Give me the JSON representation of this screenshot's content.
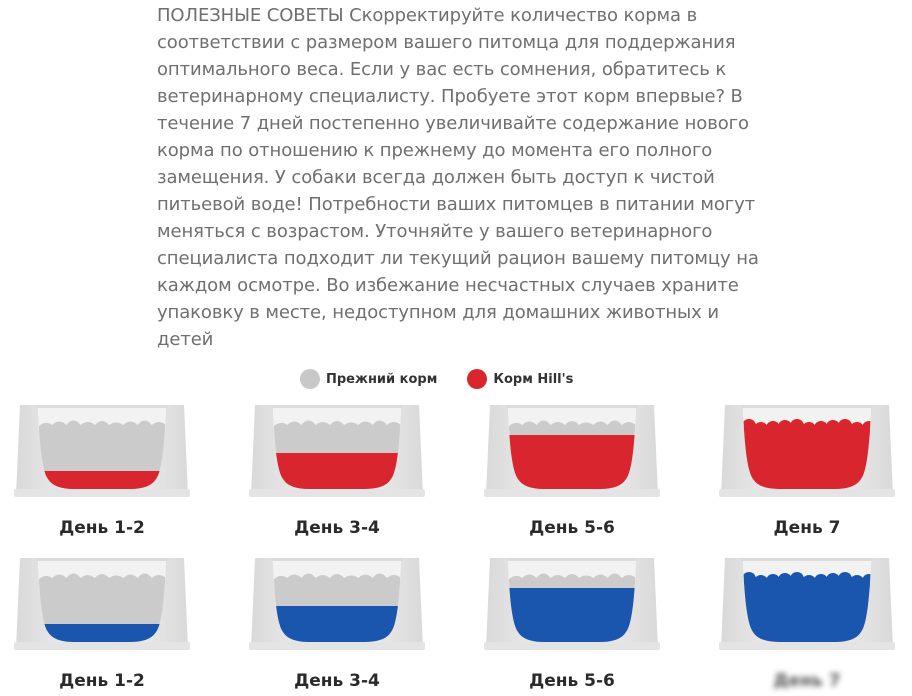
{
  "advice_text": "ПОЛЕЗНЫЕ СОВЕТЫ Скорректируйте количество корма в соответствии с размером вашего питомца для поддержания оптимального веса. Если у вас есть сомнения, обратитесь к ветеринарному специалисту. Пробуете этот корм впервые? В течение 7 дней постепенно увеличивайте содержание нового корма по отношению к прежнему до момента его полного замещения. У собаки всегда должен быть доступ к чистой питьевой воде! Потребности ваших питомцев в питании могут меняться с возрастом. Уточняйте у вашего ветеринарного специалиста подходит ли текущий рацион вашему питомцу на каждом осмотре. Во избежание несчастных случаев храните упаковку в месте, недоступном для домашних животных и детей",
  "legend": {
    "old_food": {
      "label": "Прежний корм",
      "color": "#c8c8c8"
    },
    "new_food": {
      "label": "Корм Hill's",
      "color": "#d9262e"
    }
  },
  "colors": {
    "red": "#d9262e",
    "blue": "#1a56ad",
    "grey_food": "#cbcbcb"
  },
  "rows": [
    {
      "new_food_color": "#d9262e",
      "bowls": [
        {
          "label": "День 1-2",
          "new_food_fraction": 0.25
        },
        {
          "label": "День 3-4",
          "new_food_fraction": 0.5
        },
        {
          "label": "День 5-6",
          "new_food_fraction": 0.75
        },
        {
          "label": "День 7",
          "new_food_fraction": 1.0
        }
      ]
    },
    {
      "new_food_color": "#1a56ad",
      "bowls": [
        {
          "label": "День 1-2",
          "new_food_fraction": 0.25
        },
        {
          "label": "День 3-4",
          "new_food_fraction": 0.5
        },
        {
          "label": "День 5-6",
          "new_food_fraction": 0.75
        },
        {
          "label": "День 7",
          "new_food_fraction": 1.0
        }
      ]
    }
  ]
}
